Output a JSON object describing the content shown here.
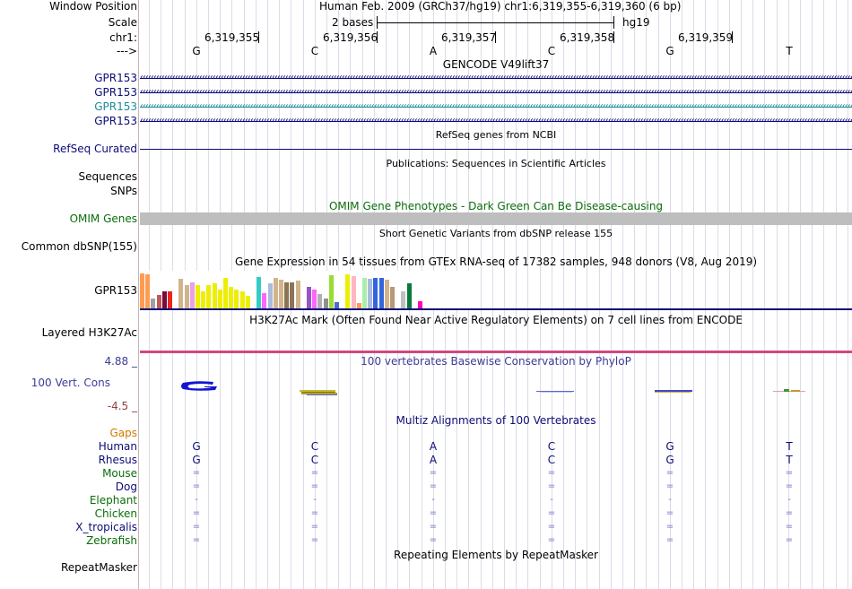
{
  "position": {
    "label": "Window Position",
    "text": "Human Feb. 2009 (GRCh37/hg19)   chr1:6,319,355-6,319,360 (6 bp)"
  },
  "scale": {
    "label": "Scale",
    "bases": "2 bases",
    "assembly": "hg19"
  },
  "ruler": {
    "chrom_label": "chr1:",
    "strand_label": "--->",
    "ticks": [
      "6,319,355",
      "6,319,356",
      "6,319,357",
      "6,319,358",
      "6,319,359"
    ],
    "bases": [
      "G",
      "C",
      "A",
      "C",
      "G",
      "T"
    ]
  },
  "tracks": {
    "gencode": {
      "title": "GENCODE V49lift37",
      "genes": [
        {
          "name": "GPR153",
          "color": "#0c0c78"
        },
        {
          "name": "GPR153",
          "color": "#0c0c78"
        },
        {
          "name": "GPR153",
          "color": "#1e8c9a"
        },
        {
          "name": "GPR153",
          "color": "#0c0c78"
        }
      ]
    },
    "refseq": {
      "title": "RefSeq genes from NCBI",
      "label": "RefSeq Curated",
      "color": "#0c0c78"
    },
    "publications": {
      "title": "Publications: Sequences in Scientific Articles",
      "labels": [
        "Sequences",
        "SNPs"
      ]
    },
    "omim": {
      "title": "OMIM Gene Phenotypes - Dark Green Can Be Disease-causing",
      "label": "OMIM Genes",
      "color": "#0a6e0a",
      "bar_color": "#bebebe"
    },
    "dbsnp": {
      "title": "Short Genetic Variants from dbSNP release 155",
      "label": "Common dbSNP(155)"
    },
    "gtex": {
      "title": "Gene Expression in 54 tissues from GTEx RNA-seq of 17382 samples, 948 donors (V8, Aug 2019)",
      "label": "GPR153",
      "bars": [
        {
          "color": "#ff9c52",
          "value": 1.0
        },
        {
          "color": "#ff9c52",
          "value": 0.97
        },
        {
          "color": "#a0a0a0",
          "value": 0.3
        },
        {
          "color": "#be5a5a",
          "value": 0.4
        },
        {
          "color": "#7a0a3c",
          "value": 0.5
        },
        {
          "color": "#e6281e",
          "value": 0.5
        },
        {
          "color": "#ffffff",
          "value": 0.0
        },
        {
          "color": "#d2b48c",
          "value": 0.85
        },
        {
          "color": "#d2b48c",
          "value": 0.68
        },
        {
          "color": "#ec9ee6",
          "value": 0.75
        },
        {
          "color": "#eeee00",
          "value": 0.68
        },
        {
          "color": "#eeee00",
          "value": 0.5
        },
        {
          "color": "#eeee00",
          "value": 0.68
        },
        {
          "color": "#eeee00",
          "value": 0.72
        },
        {
          "color": "#eeee00",
          "value": 0.56
        },
        {
          "color": "#eeee00",
          "value": 0.88
        },
        {
          "color": "#eeee00",
          "value": 0.62
        },
        {
          "color": "#eeee00",
          "value": 0.56
        },
        {
          "color": "#eeee00",
          "value": 0.5
        },
        {
          "color": "#eeee00",
          "value": 0.38
        },
        {
          "color": "#ffffff",
          "value": 0.0
        },
        {
          "color": "#33ccc8",
          "value": 0.9
        },
        {
          "color": "#ff66ff",
          "value": 0.45
        },
        {
          "color": "#aabbdd",
          "value": 0.72
        },
        {
          "color": "#d2b48c",
          "value": 0.88
        },
        {
          "color": "#d2b48c",
          "value": 0.82
        },
        {
          "color": "#8b7355",
          "value": 0.75
        },
        {
          "color": "#8b7355",
          "value": 0.75
        },
        {
          "color": "#d2b48c",
          "value": 0.8
        },
        {
          "color": "#ffffff",
          "value": 0.0
        },
        {
          "color": "#9a52c8",
          "value": 0.62
        },
        {
          "color": "#ff66ff",
          "value": 0.55
        },
        {
          "color": "#b0b0b0",
          "value": 0.42
        },
        {
          "color": "#909090",
          "value": 0.3
        },
        {
          "color": "#99dd33",
          "value": 0.95
        },
        {
          "color": "#4c6ad6",
          "value": 0.2
        },
        {
          "color": "#ffffff",
          "value": 0.0
        },
        {
          "color": "#eeee00",
          "value": 0.98
        },
        {
          "color": "#ffb6c1",
          "value": 0.92
        },
        {
          "color": "#ff9c52",
          "value": 0.18
        },
        {
          "color": "#aaeeaa",
          "value": 0.88
        },
        {
          "color": "#aabbdd",
          "value": 0.85
        },
        {
          "color": "#3366dd",
          "value": 0.88
        },
        {
          "color": "#3366dd",
          "value": 0.88
        },
        {
          "color": "#d2b48c",
          "value": 0.82
        },
        {
          "color": "#b89878",
          "value": 0.62
        },
        {
          "color": "#ffffff",
          "value": 0.0
        },
        {
          "color": "#c0c0c0",
          "value": 0.5
        },
        {
          "color": "#0a7a3c",
          "value": 0.72
        },
        {
          "color": "#ffffff",
          "value": 0.0
        },
        {
          "color": "#ff00bb",
          "value": 0.22
        }
      ]
    },
    "h3k27ac": {
      "title": "H3K27Ac Mark (Often Found Near Active Regulatory Elements) on 7 cell lines from ENCODE",
      "label": "Layered H3K27Ac",
      "line_color": "#d04880"
    },
    "conservation": {
      "title": "100 vertebrates Basewise Conservation by PhyloP",
      "label": "100 Vert. Cons",
      "ymax": "4.88 _",
      "ymin": "-4.5 _",
      "title_color": "#3c3c96",
      "max_color": "#3c3c96",
      "min_color": "#963c3c"
    },
    "multiz": {
      "title": "Multiz Alignments of 100 Vertebrates",
      "title_color": "#0c0c78",
      "gaps_label": "Gaps",
      "gaps_color": "#d27800",
      "species": [
        {
          "name": "Human",
          "color": "#0c0c78",
          "row": [
            "G",
            "C",
            "A",
            "C",
            "G",
            "T"
          ],
          "row_color": "#0c0c78"
        },
        {
          "name": "Rhesus",
          "color": "#0c0c78",
          "row": [
            "G",
            "C",
            "A",
            "C",
            "G",
            "T"
          ],
          "row_color": "#0c0c78"
        },
        {
          "name": "Mouse",
          "color": "#0a6e0a",
          "row": [
            "=",
            "=",
            "=",
            "=",
            "=",
            "="
          ],
          "row_color": "#6e6ec8"
        },
        {
          "name": "Dog",
          "color": "#0c0c78",
          "row": [
            "=",
            "=",
            "=",
            "=",
            "=",
            "="
          ],
          "row_color": "#6e6ec8"
        },
        {
          "name": "Elephant",
          "color": "#0a6e0a",
          "row": [
            "-",
            "-",
            "-",
            "-",
            "-",
            "-"
          ],
          "row_color": "#6e6ec8"
        },
        {
          "name": "Chicken",
          "color": "#0a6e0a",
          "row": [
            "=",
            "=",
            "=",
            "=",
            "=",
            "="
          ],
          "row_color": "#6e6ec8"
        },
        {
          "name": "X_tropicalis",
          "color": "#0c0c78",
          "row": [
            "=",
            "=",
            "=",
            "=",
            "=",
            "="
          ],
          "row_color": "#6e6ec8"
        },
        {
          "name": "Zebrafish",
          "color": "#0a6e0a",
          "row": [
            "=",
            "=",
            "=",
            "=",
            "=",
            "="
          ],
          "row_color": "#6e6ec8"
        }
      ]
    },
    "repeatmasker": {
      "title": "Repeating Elements by RepeatMasker",
      "label": "RepeatMasker"
    }
  }
}
